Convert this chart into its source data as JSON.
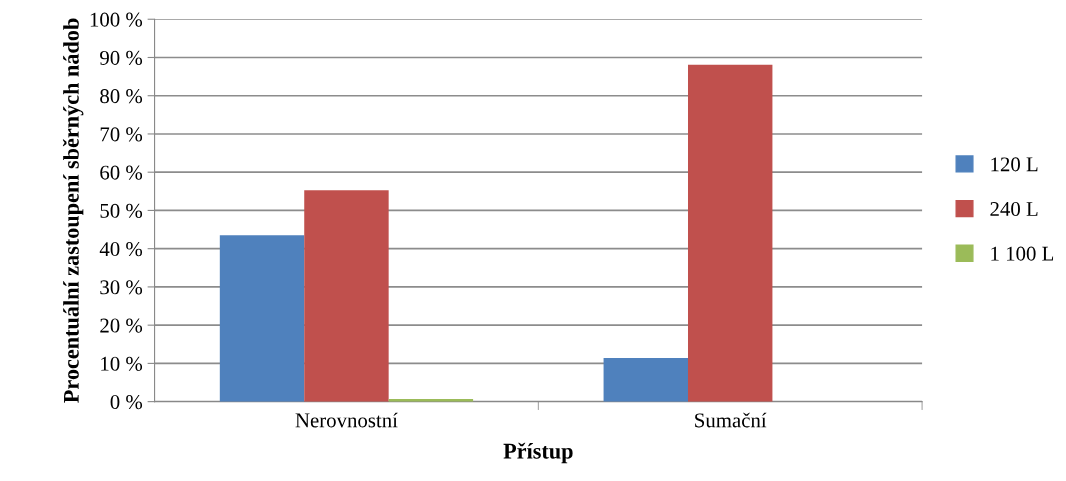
{
  "chart_data": {
    "type": "bar",
    "xlabel": "Přístup",
    "ylabel": "Procentuální zastoupení sběrných nádob",
    "categories": [
      "Nerovnostní",
      "Sumační"
    ],
    "series": [
      {
        "name": "120 L",
        "color": "#4f81bd",
        "values": [
          43.5,
          11.4
        ]
      },
      {
        "name": "240 L",
        "color": "#c0504d",
        "values": [
          55.3,
          88.1
        ]
      },
      {
        "name": "1 100 L",
        "color": "#9bbb59",
        "values": [
          0.7,
          0
        ]
      }
    ],
    "ylim": [
      0,
      100
    ],
    "yticks": [
      {
        "value": 0,
        "label": "0 %"
      },
      {
        "value": 10,
        "label": "10 %"
      },
      {
        "value": 20,
        "label": "20 %"
      },
      {
        "value": 30,
        "label": "30 %"
      },
      {
        "value": 40,
        "label": "40 %"
      },
      {
        "value": 50,
        "label": "50 %"
      },
      {
        "value": 60,
        "label": "60 %"
      },
      {
        "value": 70,
        "label": "70 %"
      },
      {
        "value": 80,
        "label": "80 %"
      },
      {
        "value": 90,
        "label": "90 %"
      },
      {
        "value": 100,
        "label": "100 %"
      }
    ],
    "grid": "y",
    "legend": "right"
  }
}
